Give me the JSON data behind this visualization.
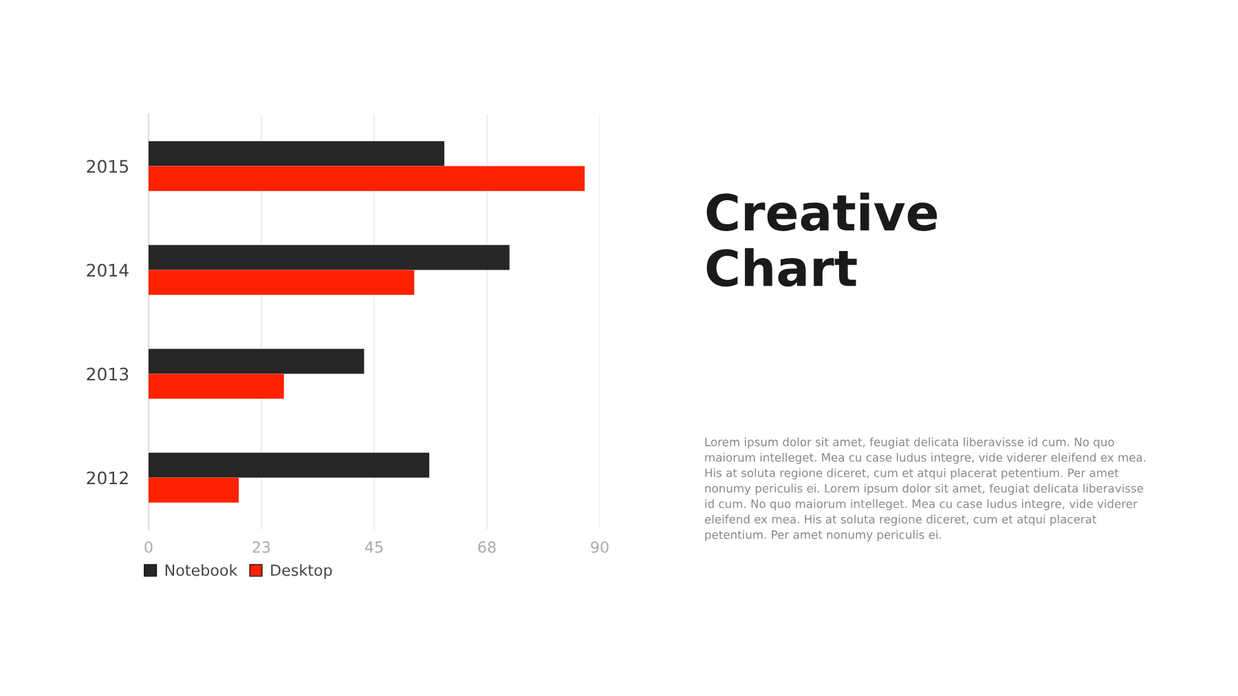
{
  "chart_data": {
    "type": "bar",
    "orientation": "horizontal",
    "title": "Creative\nChart",
    "categories": [
      "2015",
      "2014",
      "2013",
      "2012"
    ],
    "series": [
      {
        "name": "Notebook",
        "color": "#262626",
        "values": [
          59,
          72,
          43,
          56
        ]
      },
      {
        "name": "Desktop",
        "color": "#ff2200",
        "values": [
          87,
          53,
          27,
          18
        ]
      }
    ],
    "xlim": [
      0,
      90
    ],
    "xticks": [
      0,
      {
        "value": 22.5,
        "label": "23"
      },
      45,
      {
        "value": 67.5,
        "label": "68"
      },
      90
    ],
    "grid": "x",
    "legend": "bottom left",
    "annotations": [
      "Lorem ipsum dolor sit amet, feugiat delicata liberavisse id cum. No quo maiorum intelleget. Mea cu case ludus integre, vide viderer eleifend ex mea. His at soluta regione diceret, cum et atqui placerat petentium. Per amet nonumy periculis ei. Lorem ipsum dolor sit amet, feugiat delicata liberavisse id cum. No quo maiorum intelleget. Mea cu case ludus integre, vide viderer eleifend ex mea. His at soluta regione diceret, cum et atqui placerat petentium. Per amet nonumy periculis ei."
    ]
  }
}
